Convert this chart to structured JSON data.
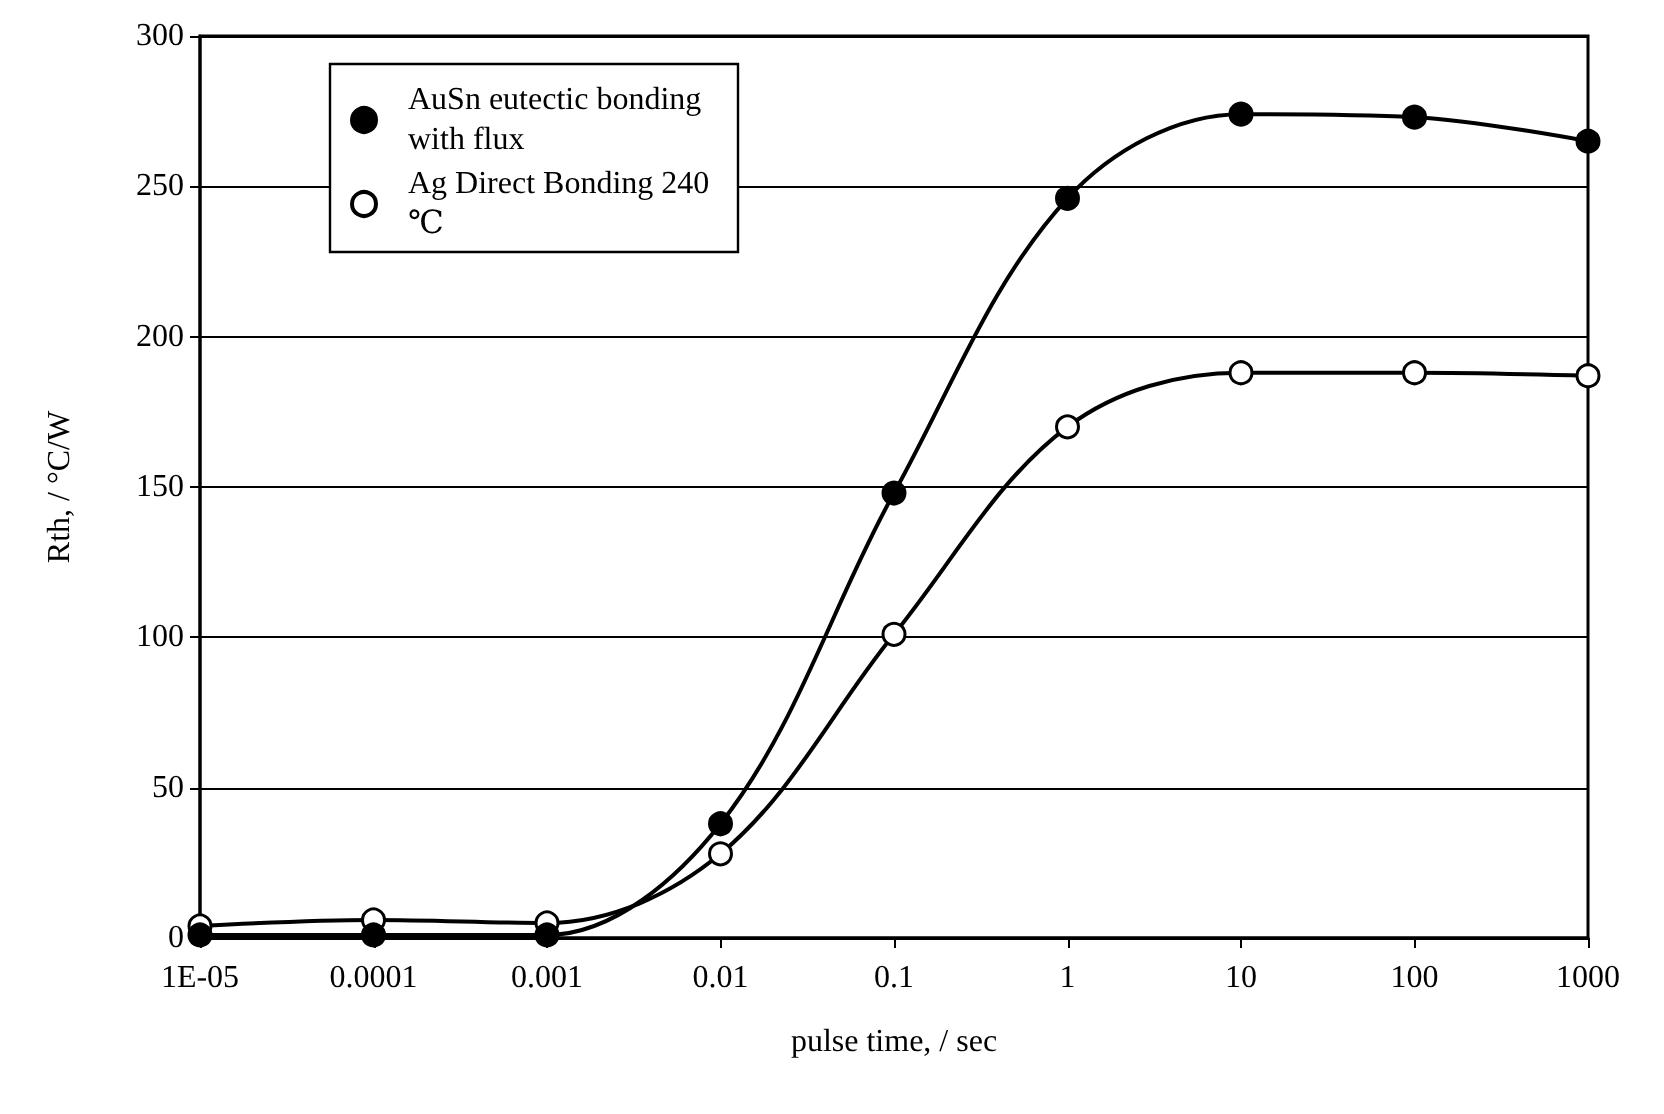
{
  "chart_data": {
    "type": "line",
    "xlabel": "pulse time, / sec",
    "ylabel": "Rth, / °C/W",
    "x": [
      1e-05,
      0.0001,
      0.001,
      0.01,
      0.1,
      1,
      10,
      100,
      1000
    ],
    "series": [
      {
        "name": "AuSn eutectic bonding with flux",
        "color": "#000000",
        "marker": "circle",
        "values": [
          1,
          1,
          1,
          38,
          148,
          246,
          274,
          273,
          265
        ]
      },
      {
        "name": "Ag Direct Bonding 240℃",
        "color": "#000000",
        "marker": "circle-open",
        "values": [
          4,
          6,
          5,
          28,
          101,
          170,
          188,
          188,
          187
        ]
      }
    ],
    "log": "x",
    "xlim": [
      1e-05,
      1000
    ],
    "xticks": [
      {
        "value": 1e-05,
        "label": "1E-05"
      },
      {
        "value": 0.0001,
        "label": "0.0001"
      },
      {
        "value": 0.001,
        "label": "0.001"
      },
      {
        "value": 0.01,
        "label": "0.01"
      },
      {
        "value": 0.1,
        "label": "0.1"
      },
      {
        "value": 1,
        "label": "1"
      },
      {
        "value": 10,
        "label": "10"
      },
      {
        "value": 100,
        "label": "100"
      },
      {
        "value": 1000,
        "label": "1000"
      }
    ],
    "ylim": [
      0,
      300
    ],
    "yticks": [
      0,
      50,
      100,
      150,
      200,
      250,
      300
    ],
    "grid": "y",
    "legend": "top left",
    "line_style": "solid"
  }
}
